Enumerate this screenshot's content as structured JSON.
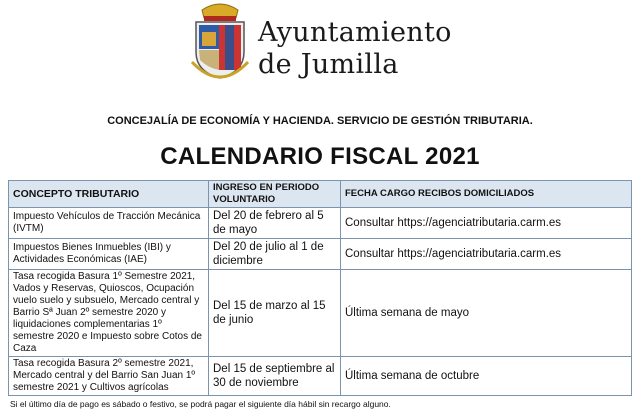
{
  "header": {
    "logo_line1": "Ayuntamiento",
    "logo_line2": "de Jumilla",
    "department": "CONCEJALÍA DE ECONOMÍA Y HACIENDA. SERVICIO DE GESTIÓN TRIBUTARIA.",
    "title": "CALENDARIO FISCAL 2021"
  },
  "table": {
    "columns": [
      "CONCEPTO TRIBUTARIO",
      "INGRESO EN PERIODO VOLUNTARIO",
      "FECHA CARGO RECIBOS DOMICILIADOS"
    ],
    "rows": [
      {
        "concepto": "Impuesto Vehículos de Tracción Mecánica (IVTM)",
        "periodo": "Del 20 de febrero al 5 de mayo",
        "cargo": "Consultar https://agenciatributaria.carm.es"
      },
      {
        "concepto": "Impuestos Bienes Inmuebles (IBI) y Actividades Económicas (IAE)",
        "periodo": "Del 20 de julio al 1 de diciembre",
        "cargo": "Consultar https://agenciatributaria.carm.es"
      },
      {
        "concepto": "Tasa recogida Basura 1º Semestre 2021, Vados y Reservas, Quioscos, Ocupación vuelo suelo y subsuelo, Mercado central y Barrio Sª Juan 2º semestre 2020 y liquidaciones complementarias 1º semestre 2020 e Impuesto sobre Cotos de Caza",
        "periodo": "Del 15 de marzo al 15 de junio",
        "cargo": "Última semana de mayo"
      },
      {
        "concepto": "Tasa recogida Basura 2º semestre 2021, Mercado central y del Barrio San Juan 1º semestre 2021 y Cultivos agrícolas",
        "periodo": "Del 15 de septiembre al 30 de noviembre",
        "cargo": "Última semana de octubre"
      }
    ]
  },
  "footnote": "Si el último día de pago es sábado o festivo, se podrá pagar el siguiente día hábil sin recargo alguno.",
  "colors": {
    "header_bg": "#dce6f1",
    "border": "#7b93ad"
  }
}
